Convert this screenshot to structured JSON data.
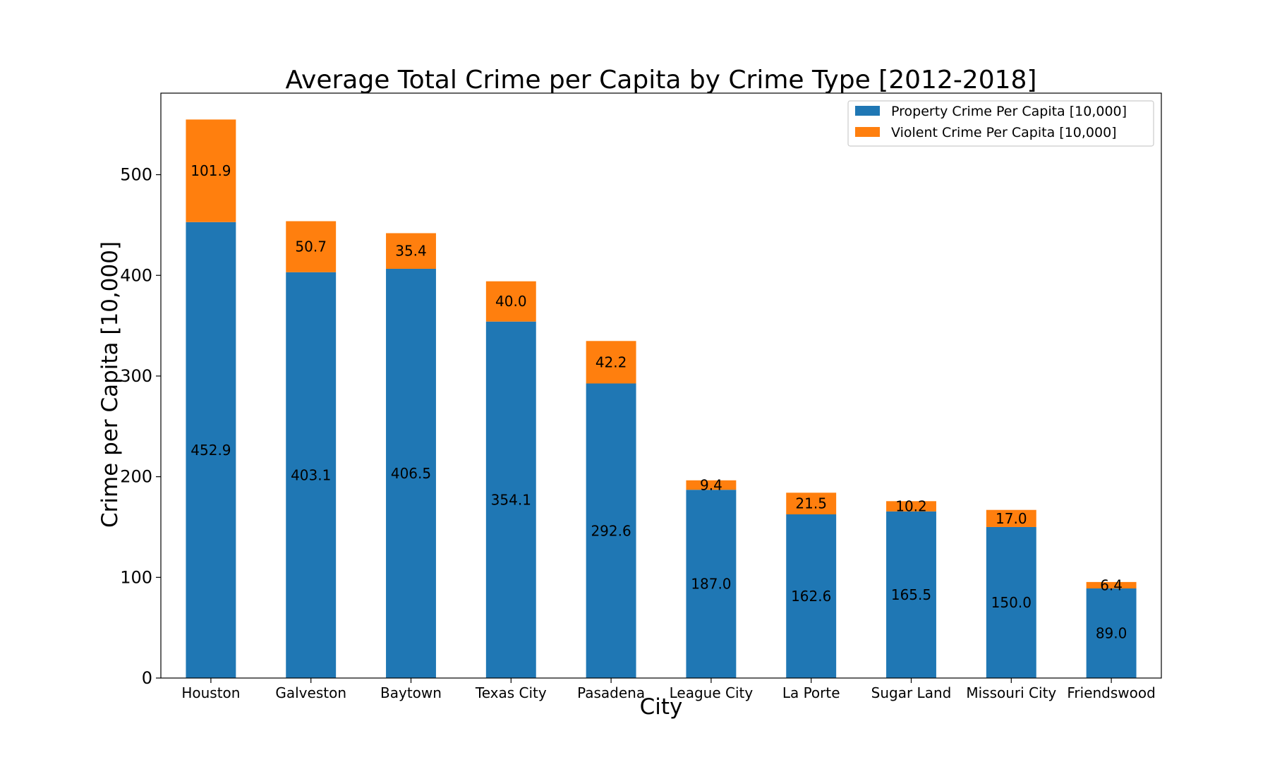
{
  "chart_data": {
    "type": "bar",
    "stacked": true,
    "title": "Average Total Crime per Capita by Crime Type [2012-2018]",
    "xlabel": "City",
    "ylabel": "Crime per Capita [10,000]",
    "categories": [
      "Houston",
      "Galveston",
      "Baytown",
      "Texas City",
      "Pasadena",
      "League City",
      "La Porte",
      "Sugar Land",
      "Missouri City",
      "Friendswood"
    ],
    "series": [
      {
        "name": "Property Crime Per Capita [10,000]",
        "color": "#1f77b4",
        "values": [
          452.9,
          403.1,
          406.5,
          354.1,
          292.6,
          187.0,
          162.6,
          165.5,
          150.0,
          89.0
        ],
        "labels": [
          "452.9",
          "403.1",
          "406.5",
          "354.1",
          "292.6",
          "187.0",
          "162.6",
          "165.5",
          "150.0",
          "89.0"
        ]
      },
      {
        "name": "Violent Crime Per Capita [10,000]",
        "color": "#ff7f0e",
        "values": [
          101.9,
          50.7,
          35.4,
          40.0,
          42.2,
          9.4,
          21.5,
          10.2,
          17.0,
          6.4
        ],
        "labels": [
          "101.9",
          "50.7",
          "35.4",
          "40.0",
          "42.2",
          "9.4",
          "21.5",
          "10.2",
          "17.0",
          "6.4"
        ]
      }
    ],
    "ylim": [
      0,
      581
    ],
    "yticks": [
      0,
      100,
      200,
      300,
      400,
      500
    ],
    "ytick_labels": [
      "0",
      "100",
      "200",
      "300",
      "400",
      "500"
    ],
    "grid": false,
    "legend_position": "top-right"
  }
}
